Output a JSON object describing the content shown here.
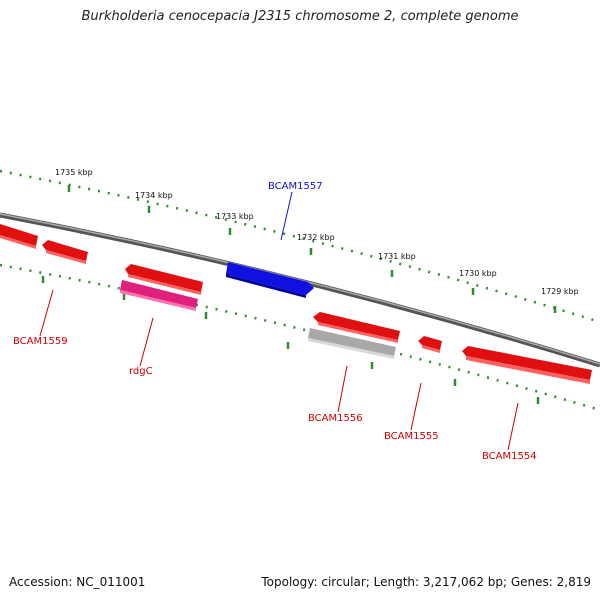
{
  "title": "Burkholderia cenocepacia J2315 chromosome 2, complete genome",
  "ticks": [
    "1735 kbp",
    "1734 kbp",
    "1733 kbp",
    "1732 kbp",
    "1731 kbp",
    "1730 kbp",
    "1729 kbp"
  ],
  "genes": {
    "bcam1557": "BCAM1557",
    "bcam1559": "BCAM1559",
    "rdgc": "rdgC",
    "bcam1556": "BCAM1556",
    "bcam1555": "BCAM1555",
    "bcam1554": "BCAM1554"
  },
  "colors": {
    "forward_gene": "#1010e0",
    "reverse_gene": "#e01010",
    "rdgc_gene": "#e0207a",
    "pseudo_gene": "#a8a8a8",
    "backbone": "#7a7a7a",
    "tick_marks": "#2e8b2e"
  },
  "footer": {
    "accession": "Accession: NC_011001",
    "summary": "Topology: circular; Length: 3,217,062 bp; Genes: 2,819"
  }
}
